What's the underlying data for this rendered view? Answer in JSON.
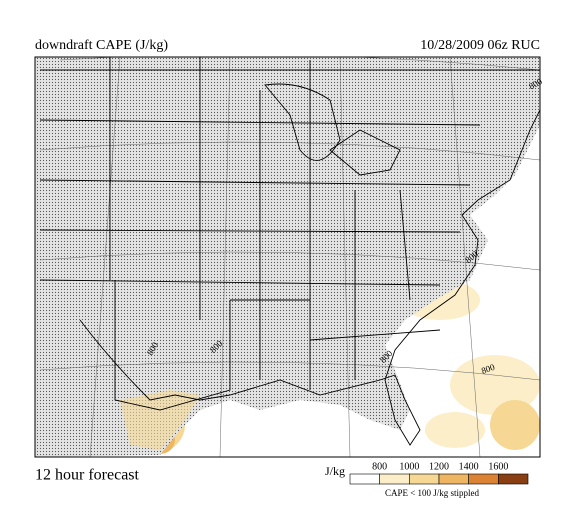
{
  "header": {
    "title": "downdraft CAPE (J/kg)",
    "date": "10/28/2009  06z  RUC"
  },
  "footer": {
    "forecast": "12 hour forecast"
  },
  "legend": {
    "unit": "J/kg",
    "levels": [
      800,
      1000,
      1200,
      1400,
      1600
    ],
    "colors": [
      "#ffffff",
      "#fbeec8",
      "#f6d894",
      "#eeb563",
      "#dc8234",
      "#8a3f12"
    ],
    "note": "CAPE < 100 J/kg stippled"
  },
  "contour_labels": [
    "800",
    "800",
    "800",
    "800",
    "800",
    "800"
  ]
}
